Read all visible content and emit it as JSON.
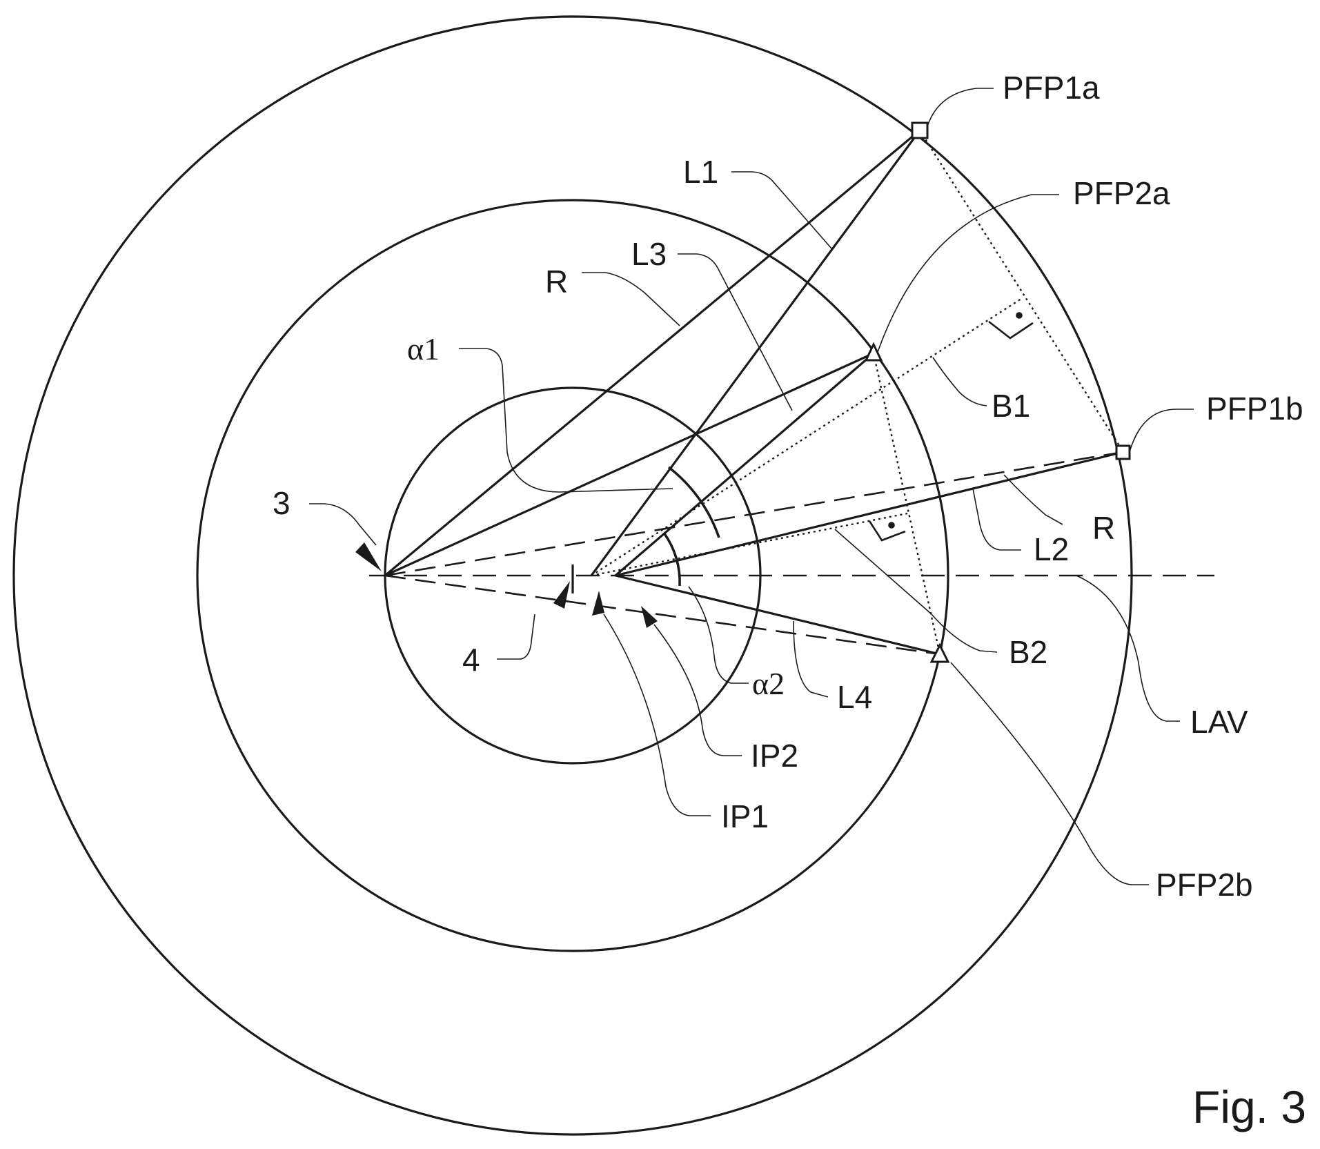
{
  "figure_label": "Fig. 3",
  "labels": {
    "pfp1a": "PFP1a",
    "pfp1b": "PFP1b",
    "pfp2a": "PFP2a",
    "pfp2b": "PFP2b",
    "l1": "L1",
    "l2": "L2",
    "l3": "L3",
    "l4": "L4",
    "r_upper": "R",
    "r_lower": "R",
    "b1": "B1",
    "b2": "B2",
    "alpha1": "α1",
    "alpha2": "α2",
    "ref3": "3",
    "ref4": "4",
    "ip1": "IP1",
    "ip2": "IP2",
    "lav": "LAV"
  },
  "colors": {
    "line": "#1a1a1a",
    "background": "#ffffff"
  },
  "markers": {
    "pfp1": "square-marker",
    "pfp2": "triangle-marker",
    "right_angle": "right-angle-symbol"
  }
}
